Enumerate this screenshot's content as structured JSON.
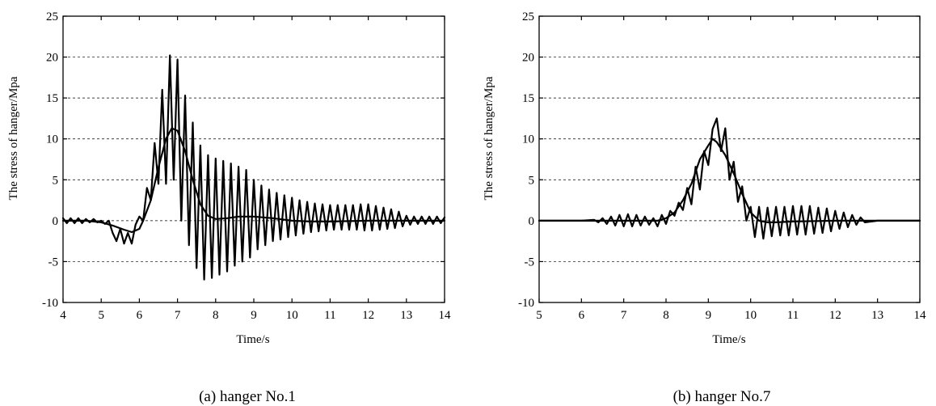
{
  "chart_data": [
    {
      "type": "line",
      "caption": "(a) hanger No.1",
      "xlabel": "Time/s",
      "ylabel": "The stress of hanger/Mpa",
      "xlim": [
        4,
        14
      ],
      "ylim": [
        -10,
        25
      ],
      "xticks": [
        4,
        5,
        6,
        7,
        8,
        9,
        10,
        11,
        12,
        13,
        14
      ],
      "yticks": [
        -10,
        -5,
        0,
        5,
        10,
        15,
        20,
        25
      ],
      "grid": "horizontal dashed",
      "legend": "none",
      "series": [
        {
          "x": [
            4.0,
            4.6,
            5.0,
            5.3,
            5.6,
            5.8,
            6.0,
            6.1,
            6.3,
            6.5,
            6.7,
            6.85,
            7.0,
            7.2,
            7.4,
            7.6,
            7.8,
            8.0,
            8.3,
            8.6,
            9.0,
            9.5,
            10.0,
            10.5,
            11.0,
            12.0,
            13.0,
            14.0
          ],
          "y": [
            0.0,
            0.0,
            -0.2,
            -0.6,
            -1.1,
            -1.4,
            -1.0,
            0.0,
            2.5,
            6.5,
            10.0,
            11.3,
            11.0,
            8.5,
            5.0,
            2.0,
            0.6,
            0.2,
            0.3,
            0.5,
            0.5,
            0.3,
            0.0,
            -0.1,
            -0.1,
            0.0,
            0.0,
            0.0
          ]
        },
        {
          "x": [
            4.0,
            4.1,
            4.2,
            4.3,
            4.4,
            4.5,
            4.6,
            4.7,
            4.8,
            4.9,
            5.0,
            5.1,
            5.2,
            5.3,
            5.4,
            5.5,
            5.6,
            5.7,
            5.8,
            5.9,
            6.0,
            6.1,
            6.2,
            6.3,
            6.4,
            6.5,
            6.6,
            6.7,
            6.8,
            6.9,
            7.0,
            7.1,
            7.2,
            7.3,
            7.4,
            7.5,
            7.6,
            7.7,
            7.8,
            7.9,
            8.0,
            8.1,
            8.2,
            8.3,
            8.4,
            8.5,
            8.6,
            8.7,
            8.8,
            8.9,
            9.0,
            9.1,
            9.2,
            9.3,
            9.4,
            9.5,
            9.6,
            9.7,
            9.8,
            9.9,
            10.0,
            10.1,
            10.2,
            10.3,
            10.4,
            10.5,
            10.6,
            10.7,
            10.8,
            10.9,
            11.0,
            11.1,
            11.2,
            11.3,
            11.4,
            11.5,
            11.6,
            11.7,
            11.8,
            11.9,
            12.0,
            12.1,
            12.2,
            12.3,
            12.4,
            12.5,
            12.6,
            12.7,
            12.8,
            12.9,
            13.0,
            13.1,
            13.2,
            13.3,
            13.4,
            13.5,
            13.6,
            13.7,
            13.8,
            13.9,
            14.0
          ],
          "y": [
            0.3,
            -0.3,
            0.3,
            -0.3,
            0.3,
            -0.3,
            0.2,
            -0.2,
            0.2,
            -0.2,
            0.0,
            -0.4,
            0.0,
            -1.5,
            -2.5,
            -1.0,
            -2.8,
            -1.5,
            -2.8,
            -0.5,
            0.5,
            0.0,
            4.0,
            2.5,
            9.5,
            4.5,
            16.0,
            4.5,
            20.2,
            5.0,
            19.7,
            0.0,
            15.3,
            -3.0,
            12.0,
            -5.8,
            9.2,
            -7.2,
            8.0,
            -7.0,
            7.6,
            -6.6,
            7.3,
            -6.2,
            7.0,
            -5.5,
            6.6,
            -5.0,
            6.2,
            -4.5,
            5.0,
            -3.5,
            4.3,
            -3.0,
            3.8,
            -2.5,
            3.4,
            -2.3,
            3.1,
            -2.0,
            2.8,
            -1.8,
            2.5,
            -1.6,
            2.3,
            -1.4,
            2.1,
            -1.3,
            2.0,
            -1.2,
            1.9,
            -1.1,
            1.9,
            -1.1,
            1.9,
            -1.1,
            1.9,
            -1.1,
            2.0,
            -1.2,
            2.0,
            -1.2,
            1.8,
            -1.1,
            1.6,
            -1.0,
            1.4,
            -0.9,
            1.1,
            -0.7,
            0.6,
            -0.5,
            0.5,
            -0.4,
            0.5,
            -0.4,
            0.5,
            -0.4,
            0.5,
            -0.3,
            0.4
          ]
        }
      ]
    },
    {
      "type": "line",
      "caption": "(b) hanger No.7",
      "xlabel": "Time/s",
      "ylabel": "The stress of hanger/Mpa",
      "xlim": [
        5,
        14
      ],
      "ylim": [
        -10,
        25
      ],
      "xticks": [
        5,
        6,
        7,
        8,
        9,
        10,
        11,
        12,
        13,
        14
      ],
      "yticks": [
        -10,
        -5,
        0,
        5,
        10,
        15,
        20,
        25
      ],
      "grid": "horizontal dashed",
      "legend": "none",
      "series": [
        {
          "x": [
            5.0,
            6.0,
            7.0,
            7.8,
            8.0,
            8.2,
            8.4,
            8.6,
            8.8,
            9.0,
            9.1,
            9.2,
            9.4,
            9.6,
            9.8,
            10.0,
            10.2,
            10.4,
            10.6,
            11.0,
            12.0,
            13.0,
            14.0
          ],
          "y": [
            0.0,
            0.0,
            0.0,
            0.0,
            0.3,
            1.0,
            2.5,
            4.5,
            7.5,
            9.2,
            10.0,
            9.6,
            8.0,
            5.8,
            3.3,
            1.0,
            0.0,
            -0.2,
            -0.2,
            -0.1,
            0.0,
            0.0,
            0.0
          ]
        },
        {
          "x": [
            5.0,
            5.5,
            6.0,
            6.3,
            6.4,
            6.5,
            6.6,
            6.7,
            6.8,
            6.9,
            7.0,
            7.1,
            7.2,
            7.3,
            7.4,
            7.5,
            7.6,
            7.7,
            7.8,
            7.9,
            8.0,
            8.1,
            8.2,
            8.3,
            8.4,
            8.5,
            8.6,
            8.7,
            8.8,
            8.9,
            9.0,
            9.1,
            9.2,
            9.3,
            9.4,
            9.5,
            9.6,
            9.7,
            9.8,
            9.9,
            10.0,
            10.1,
            10.2,
            10.3,
            10.4,
            10.5,
            10.6,
            10.7,
            10.8,
            10.9,
            11.0,
            11.1,
            11.2,
            11.3,
            11.4,
            11.5,
            11.6,
            11.7,
            11.8,
            11.9,
            12.0,
            12.1,
            12.2,
            12.3,
            12.4,
            12.5,
            12.6,
            12.7,
            13.0,
            14.0
          ],
          "y": [
            0.0,
            0.0,
            0.0,
            0.1,
            -0.2,
            0.3,
            -0.4,
            0.5,
            -0.6,
            0.7,
            -0.7,
            0.8,
            -0.7,
            0.7,
            -0.6,
            0.5,
            -0.5,
            0.3,
            -0.7,
            0.7,
            -0.4,
            1.2,
            0.6,
            2.2,
            1.3,
            4.0,
            2.0,
            6.6,
            3.8,
            8.5,
            6.8,
            11.2,
            12.5,
            8.5,
            11.3,
            5.0,
            7.2,
            2.3,
            4.2,
            0.0,
            1.7,
            -2.0,
            1.7,
            -2.2,
            1.6,
            -1.9,
            1.7,
            -1.8,
            1.7,
            -1.8,
            1.8,
            -1.7,
            1.8,
            -1.7,
            1.8,
            -1.6,
            1.6,
            -1.5,
            1.5,
            -1.3,
            1.2,
            -1.0,
            1.0,
            -0.8,
            0.7,
            -0.5,
            0.4,
            -0.2,
            0.0,
            0.0
          ]
        }
      ]
    }
  ]
}
